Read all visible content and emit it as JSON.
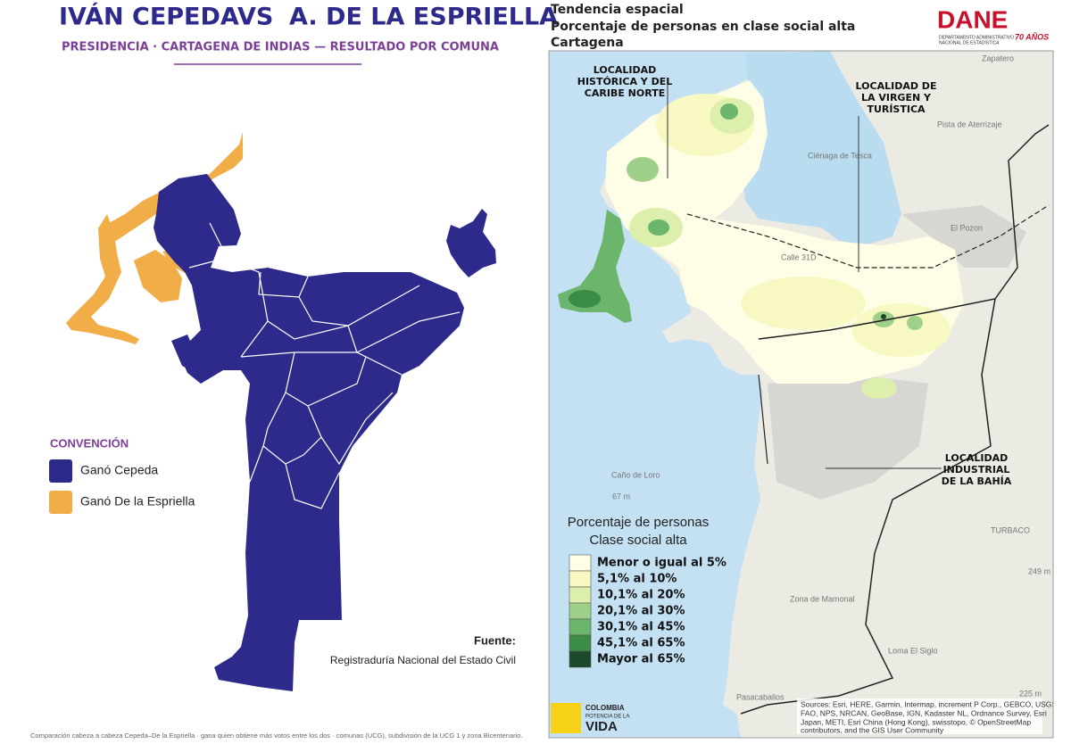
{
  "left_panel": {
    "title": {
      "candidate_1": "IVÁN CEPEDA",
      "versus": "VS",
      "candidate_2": "A. DE LA ESPRIELLA"
    },
    "subtitle": "PRESIDENCIA · CARTAGENA DE INDIAS — RESULTADO POR COMUNA",
    "legend": {
      "title": "CONVENCIÓN",
      "items": [
        {
          "label": "Ganó Cepeda",
          "color": "#2e2a8c"
        },
        {
          "label": "Ganó De la Espriella",
          "color": "#f0ad48"
        }
      ]
    },
    "source": {
      "label": "Fuente:",
      "text": "Registraduría Nacional del Estado Civil"
    },
    "footnote": "Comparación cabeza a cabeza Cepeda–De la Espriella · gana quien obtiene más votos entre los dos · comunas (UCG), subdivisión de la UCG 1 y zona Bicentenario."
  },
  "right_panel": {
    "title_lines": [
      "Tendencia espacial",
      "Porcentaje de personas en clase social alta",
      "Cartagena"
    ],
    "logo": {
      "name": "DANE",
      "subtitle_lines": [
        "DEPARTAMENTO ADMINISTRATIVO",
        "NACIONAL DE ESTADÍSTICA"
      ],
      "anniversary": "70 AÑOS"
    },
    "localities": [
      {
        "lines": [
          "LOCALIDAD",
          "HISTÓRICA Y DEL",
          "CARIBE NORTE"
        ]
      },
      {
        "lines": [
          "LOCALIDAD DE",
          "LA VIRGEN Y",
          "TURÍSTICA"
        ]
      },
      {
        "lines": [
          "LOCALIDAD",
          "INDUSTRIAL",
          "DE LA BAHÍA"
        ]
      }
    ],
    "place_labels": [
      "Zapatero",
      "Pista de Aterrizaje",
      "Ciénaga de Tesca",
      "El Pozon",
      "Calle 31D",
      "Caño de Loro",
      "67 m",
      "Zona de Mamonal",
      "TURBACO",
      "249 m",
      "Loma El Siglo",
      "Pasacaballos",
      "225 m"
    ],
    "legend": {
      "title_lines": [
        "Porcentaje de personas",
        "Clase social alta"
      ],
      "classes": [
        {
          "label": "Menor o igual al 5%",
          "color": "#fefee6"
        },
        {
          "label": "5,1% al 10%",
          "color": "#f8f8c2"
        },
        {
          "label": "10,1% al 20%",
          "color": "#dcefac"
        },
        {
          "label": "20,1% al 30%",
          "color": "#9fd08a"
        },
        {
          "label": "30,1% al 45%",
          "color": "#6bb56c"
        },
        {
          "label": "45,1% al 65%",
          "color": "#3b8c47"
        },
        {
          "label": "Mayor al 65%",
          "color": "#1b4a2b"
        }
      ]
    },
    "footer_logo": {
      "lines": [
        "COLOMBIA",
        "POTENCIA DE LA",
        "VIDA"
      ]
    },
    "sources_lines": [
      "Sources: Esri, HERE, Garmin, Intermap, increment P Corp., GEBCO, USGS,",
      "FAO, NPS, NRCAN, GeoBase, IGN, Kadaster NL, Ordnance Survey, Esri",
      "Japan, METI, Esri China (Hong Kong), swisstopo, © OpenStreetMap",
      "contributors, and the GIS User Community"
    ]
  }
}
